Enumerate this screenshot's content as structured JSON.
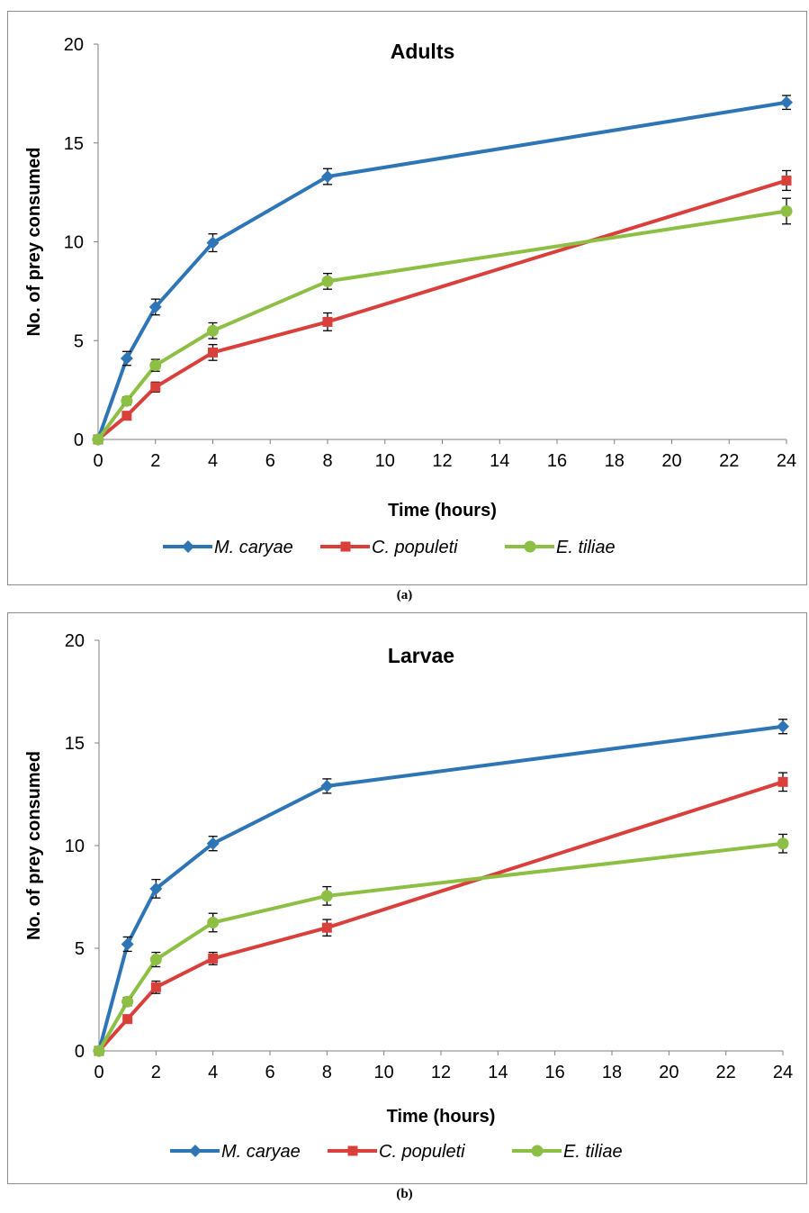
{
  "figure": {
    "captions": [
      "(a)",
      "(b)"
    ]
  },
  "chart_data": [
    {
      "type": "line",
      "title": "Adults",
      "xlabel": "Time (hours)",
      "ylabel": "No. of prey consumed",
      "x_ticks": [
        0,
        2,
        4,
        6,
        8,
        10,
        12,
        14,
        16,
        18,
        20,
        22,
        24
      ],
      "y_ticks": [
        0,
        5,
        10,
        15,
        20
      ],
      "xlim": [
        0,
        24
      ],
      "ylim": [
        0,
        20
      ],
      "x": [
        0,
        1,
        2,
        4,
        8,
        24
      ],
      "legend_position": "bottom",
      "series": [
        {
          "name": "M. caryae",
          "color": "#2e75b6",
          "marker": "diamond",
          "values": [
            0,
            4.1,
            6.7,
            9.95,
            13.3,
            17.05
          ],
          "errors": [
            0,
            0.35,
            0.4,
            0.45,
            0.4,
            0.35
          ]
        },
        {
          "name": "C. populeti",
          "color": "#d9403b",
          "marker": "square",
          "values": [
            0,
            1.2,
            2.65,
            4.4,
            5.95,
            13.1
          ],
          "errors": [
            0,
            0.2,
            0.25,
            0.4,
            0.45,
            0.5
          ]
        },
        {
          "name": "E. tiliae",
          "color": "#8cbf44",
          "marker": "circle",
          "values": [
            0,
            1.95,
            3.75,
            5.5,
            8.0,
            11.55
          ],
          "errors": [
            0,
            0.2,
            0.3,
            0.4,
            0.4,
            0.65
          ]
        }
      ]
    },
    {
      "type": "line",
      "title": "Larvae",
      "xlabel": "Time (hours)",
      "ylabel": "No. of prey consumed",
      "x_ticks": [
        0,
        2,
        4,
        6,
        8,
        10,
        12,
        14,
        16,
        18,
        20,
        22,
        24
      ],
      "y_ticks": [
        0,
        5,
        10,
        15,
        20
      ],
      "xlim": [
        0,
        24
      ],
      "ylim": [
        0,
        20
      ],
      "x": [
        0,
        1,
        2,
        4,
        8,
        24
      ],
      "legend_position": "bottom",
      "series": [
        {
          "name": "M. caryae",
          "color": "#2e75b6",
          "marker": "diamond",
          "values": [
            0,
            5.2,
            7.9,
            10.1,
            12.9,
            15.8
          ],
          "errors": [
            0,
            0.35,
            0.45,
            0.35,
            0.35,
            0.35
          ]
        },
        {
          "name": "C. populeti",
          "color": "#d9403b",
          "marker": "square",
          "values": [
            0,
            1.55,
            3.1,
            4.5,
            6.0,
            13.1
          ],
          "errors": [
            0,
            0.2,
            0.3,
            0.3,
            0.4,
            0.45
          ]
        },
        {
          "name": "E. tiliae",
          "color": "#8cbf44",
          "marker": "circle",
          "values": [
            0,
            2.4,
            4.45,
            6.25,
            7.55,
            10.1
          ],
          "errors": [
            0,
            0.2,
            0.35,
            0.45,
            0.45,
            0.45
          ]
        }
      ]
    }
  ]
}
